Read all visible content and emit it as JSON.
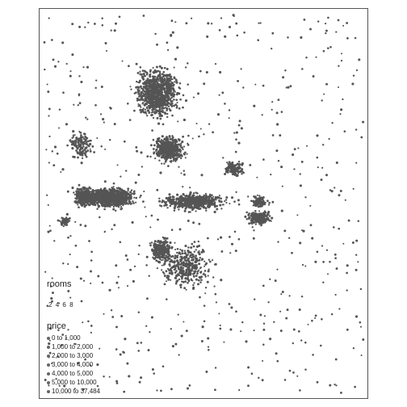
{
  "map": {
    "point_color": "#555555",
    "accent_color": "#b5651d"
  },
  "legend": {
    "rooms": {
      "title": "rooms",
      "values": [
        "2",
        "4",
        "6",
        "8"
      ]
    },
    "price": {
      "title": "price",
      "items": [
        "0 to 1,000",
        "1,000 to 2,000",
        "2,000 to 3,000",
        "3,000 to 4,000",
        "4,000 to 5,000",
        "5,000 to 10,000",
        "10,000 to 37,484"
      ]
    }
  }
}
